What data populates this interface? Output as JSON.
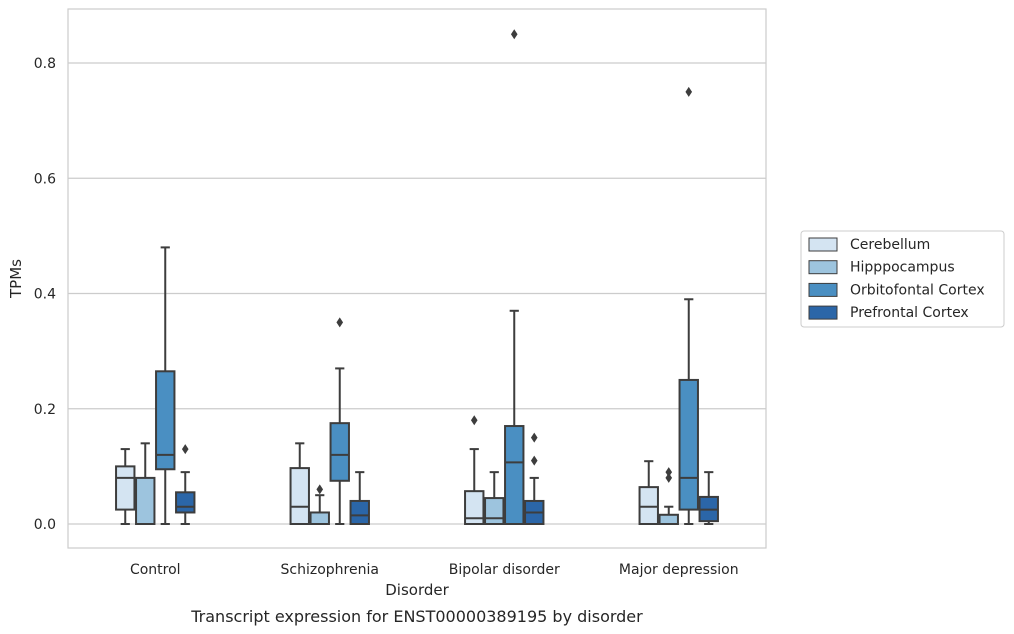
{
  "chart_data": {
    "type": "box",
    "title": "",
    "caption": "Transcript expression for ENST00000389195 by disorder",
    "xlabel": "Disorder",
    "ylabel": "TPMs",
    "ylim": [
      -0.04,
      0.895
    ],
    "yticks": [
      0.0,
      0.2,
      0.4,
      0.6,
      0.8
    ],
    "ytick_labels": [
      "0.0",
      "0.2",
      "0.4",
      "0.6",
      "0.8"
    ],
    "grid": "horizontal",
    "legend_position": "right",
    "categories": [
      "Control",
      "Schizophrenia",
      "Bipolar disorder",
      "Major depression"
    ],
    "series": [
      {
        "name": "Cerebellum",
        "color": "#d4e4f2",
        "boxes": [
          {
            "whisker_low": 0.0,
            "q1": 0.025,
            "median": 0.08,
            "q3": 0.1,
            "whisker_high": 0.13,
            "outliers": []
          },
          {
            "whisker_low": 0.0,
            "q1": 0.0,
            "median": 0.03,
            "q3": 0.097,
            "whisker_high": 0.14,
            "outliers": []
          },
          {
            "whisker_low": 0.0,
            "q1": 0.0,
            "median": 0.01,
            "q3": 0.057,
            "whisker_high": 0.13,
            "outliers": [
              0.18
            ]
          },
          {
            "whisker_low": 0.0,
            "q1": 0.0,
            "median": 0.03,
            "q3": 0.064,
            "whisker_high": 0.109,
            "outliers": []
          }
        ]
      },
      {
        "name": "Hipppocampus",
        "color": "#9dc4de",
        "boxes": [
          {
            "whisker_low": 0.0,
            "q1": 0.0,
            "median": 0.0,
            "q3": 0.08,
            "whisker_high": 0.14,
            "outliers": []
          },
          {
            "whisker_low": 0.0,
            "q1": 0.0,
            "median": 0.0,
            "q3": 0.02,
            "whisker_high": 0.05,
            "outliers": [
              0.06
            ]
          },
          {
            "whisker_low": 0.0,
            "q1": 0.0,
            "median": 0.01,
            "q3": 0.045,
            "whisker_high": 0.09,
            "outliers": []
          },
          {
            "whisker_low": 0.0,
            "q1": 0.0,
            "median": 0.0,
            "q3": 0.016,
            "whisker_high": 0.03,
            "outliers": [
              0.08,
              0.09
            ]
          }
        ]
      },
      {
        "name": "Orbitofontal Cortex",
        "color": "#4a8fc2",
        "boxes": [
          {
            "whisker_low": 0.0,
            "q1": 0.095,
            "median": 0.12,
            "q3": 0.265,
            "whisker_high": 0.48,
            "outliers": []
          },
          {
            "whisker_low": 0.0,
            "q1": 0.075,
            "median": 0.12,
            "q3": 0.175,
            "whisker_high": 0.27,
            "outliers": [
              0.35
            ]
          },
          {
            "whisker_low": 0.0,
            "q1": 0.0,
            "median": 0.107,
            "q3": 0.17,
            "whisker_high": 0.37,
            "outliers": [
              0.85
            ]
          },
          {
            "whisker_low": 0.0,
            "q1": 0.025,
            "median": 0.08,
            "q3": 0.25,
            "whisker_high": 0.39,
            "outliers": [
              0.75
            ]
          }
        ]
      },
      {
        "name": "Prefrontal Cortex",
        "color": "#2b66a8",
        "boxes": [
          {
            "whisker_low": 0.0,
            "q1": 0.02,
            "median": 0.03,
            "q3": 0.055,
            "whisker_high": 0.09,
            "outliers": [
              0.13
            ]
          },
          {
            "whisker_low": 0.0,
            "q1": 0.0,
            "median": 0.015,
            "q3": 0.04,
            "whisker_high": 0.09,
            "outliers": []
          },
          {
            "whisker_low": 0.0,
            "q1": 0.0,
            "median": 0.02,
            "q3": 0.04,
            "whisker_high": 0.08,
            "outliers": [
              0.11,
              0.15
            ]
          },
          {
            "whisker_low": 0.0,
            "q1": 0.005,
            "median": 0.025,
            "q3": 0.047,
            "whisker_high": 0.09,
            "outliers": []
          }
        ]
      }
    ]
  }
}
